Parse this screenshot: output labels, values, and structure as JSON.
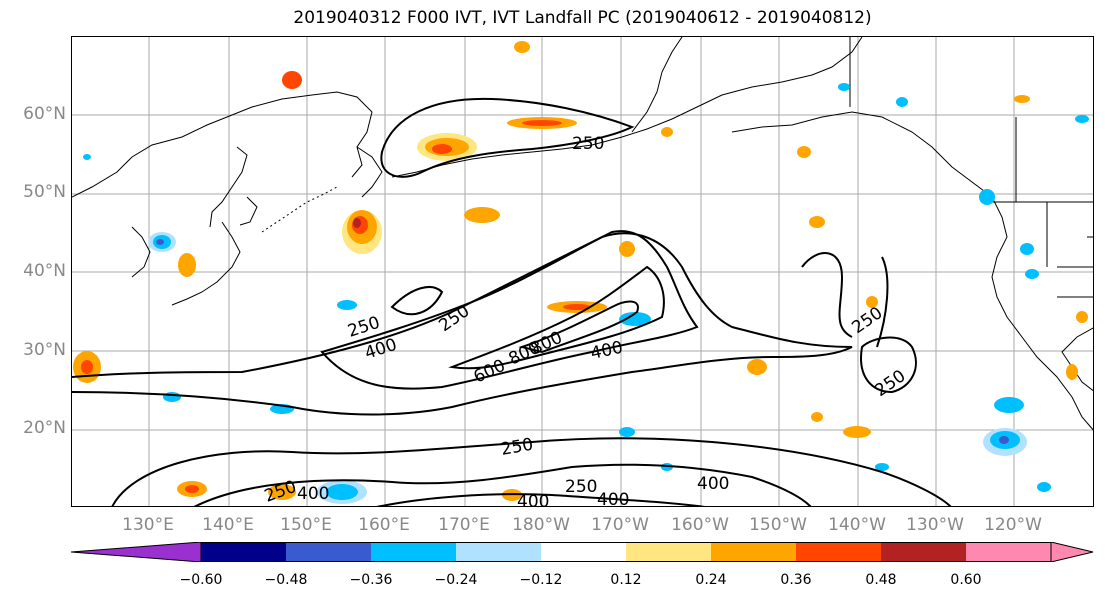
{
  "title": "2019040312 F000 IVT, IVT Landfall PC (2019040612 - 2019040812)",
  "lat_labels": [
    "60°N",
    "50°N",
    "40°N",
    "30°N",
    "20°N"
  ],
  "lon_labels": [
    "130°E",
    "140°E",
    "150°E",
    "160°E",
    "170°E",
    "180°W",
    "170°W",
    "160°W",
    "150°W",
    "140°W",
    "130°W",
    "120°W"
  ],
  "contour_labels": {
    "c250_north": "250",
    "c250_a": "250",
    "c250_b": "250",
    "c400_a": "400",
    "c400_b": "400",
    "c600": "600",
    "c800_a": "800",
    "c800_b": "800",
    "c250_east1": "250",
    "c250_east2": "250",
    "c250_south": "250",
    "c250_s2": "250",
    "c250_s3": "250",
    "c400_s1": "400",
    "c400_s2": "400",
    "c400_s3": "400",
    "c400_s4": "400"
  },
  "colorbar": {
    "ticks": [
      "−0.60",
      "−0.48",
      "−0.36",
      "−0.24",
      "−0.12",
      "0.12",
      "0.24",
      "0.36",
      "0.48",
      "0.60"
    ],
    "colors": [
      "#9b30d0",
      "#00008b",
      "#3a5bcf",
      "#00bfff",
      "#b0e2ff",
      "#ffffff",
      "#ffe680",
      "#ffa500",
      "#ff4500",
      "#b22222",
      "#ff88b0",
      "#ff88b0"
    ]
  }
}
